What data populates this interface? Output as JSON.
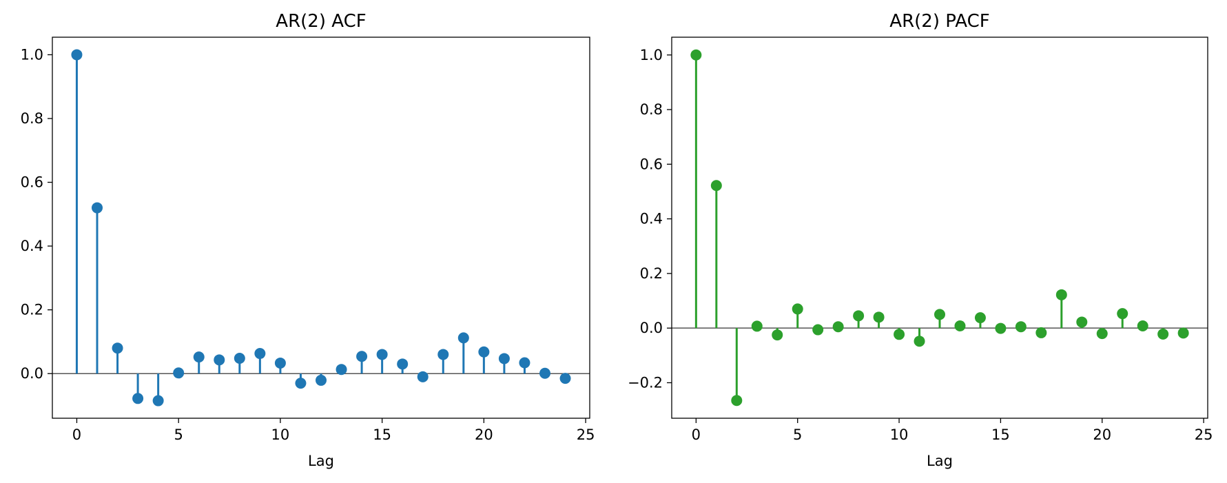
{
  "chart_data": [
    {
      "type": "stem",
      "title": "AR(2) ACF",
      "xlabel": "Lag",
      "ylabel": "",
      "color": "#1f77b4",
      "xlim": [
        -1.2,
        25.2
      ],
      "ylim": [
        -0.14,
        1.055
      ],
      "xticks": [
        0,
        5,
        10,
        15,
        20,
        25
      ],
      "yticks": [
        0.0,
        0.2,
        0.4,
        0.6,
        0.8,
        1.0
      ],
      "ytick_labels": [
        "0.0",
        "0.2",
        "0.4",
        "0.6",
        "0.8",
        "1.0"
      ],
      "x": [
        0,
        1,
        2,
        3,
        4,
        5,
        6,
        7,
        8,
        9,
        10,
        11,
        12,
        13,
        14,
        15,
        16,
        17,
        18,
        19,
        20,
        21,
        22,
        23,
        24
      ],
      "values": [
        1.0,
        0.52,
        0.08,
        -0.078,
        -0.085,
        0.002,
        0.052,
        0.043,
        0.048,
        0.063,
        0.033,
        -0.03,
        -0.021,
        0.013,
        0.054,
        0.06,
        0.03,
        -0.01,
        0.06,
        0.112,
        0.068,
        0.047,
        0.034,
        0.001,
        -0.015
      ]
    },
    {
      "type": "stem",
      "title": "AR(2) PACF",
      "xlabel": "Lag",
      "ylabel": "",
      "color": "#2ca02c",
      "xlim": [
        -1.2,
        25.2
      ],
      "ylim": [
        -0.33,
        1.065
      ],
      "xticks": [
        0,
        5,
        10,
        15,
        20,
        25
      ],
      "yticks": [
        -0.2,
        0.0,
        0.2,
        0.4,
        0.6,
        0.8,
        1.0
      ],
      "ytick_labels": [
        "−0.2",
        "0.0",
        "0.2",
        "0.4",
        "0.6",
        "0.8",
        "1.0"
      ],
      "x": [
        0,
        1,
        2,
        3,
        4,
        5,
        6,
        7,
        8,
        9,
        10,
        11,
        12,
        13,
        14,
        15,
        16,
        17,
        18,
        19,
        20,
        21,
        22,
        23,
        24
      ],
      "values": [
        1.0,
        0.522,
        -0.265,
        0.007,
        -0.025,
        0.07,
        -0.006,
        0.005,
        0.045,
        0.04,
        -0.023,
        -0.048,
        0.05,
        0.008,
        0.038,
        -0.001,
        0.005,
        -0.017,
        0.122,
        0.022,
        -0.02,
        0.053,
        0.008,
        -0.022,
        -0.018
      ]
    }
  ]
}
